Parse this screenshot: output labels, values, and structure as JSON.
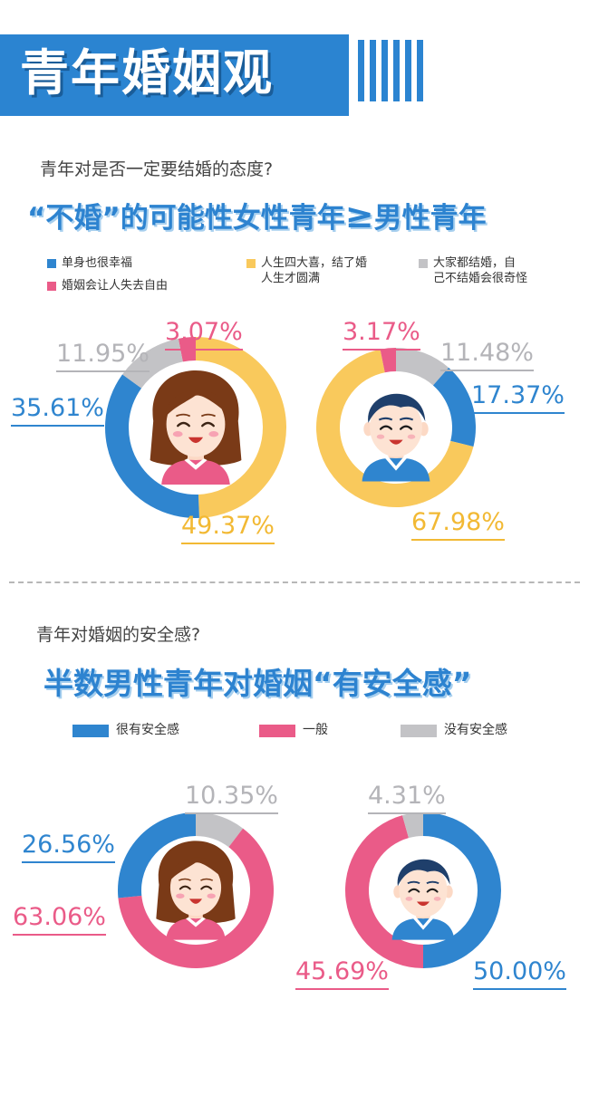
{
  "header": {
    "title": "青年婚姻观"
  },
  "section1": {
    "question": "青年对是否一定要结婚的态度?",
    "headline_left": "“不婚”的可能性女性青年",
    "headline_symbol": "≥",
    "headline_right": "男性青年",
    "legend": [
      {
        "label": "单身也很幸福",
        "color": "#2f85cf"
      },
      {
        "label": "人生四大喜，结了婚人生才圆满",
        "line1": "人生四大喜，结了婚",
        "line2": "人生才圆满",
        "color": "#f9c95c"
      },
      {
        "label": "大家都结婚，自己不结婚会很奇怪",
        "line1": "大家都结婚，自",
        "line2": "己不结婚会很奇怪",
        "color": "#c3c3c6"
      },
      {
        "label": "婚姻会让人失去自由",
        "color": "#ea5b88"
      }
    ]
  },
  "section2": {
    "question": "青年对婚姻的安全感?",
    "headline": "半数男性青年对婚姻“有安全感”",
    "legend": [
      {
        "label": "很有安全感",
        "color": "#2f85cf"
      },
      {
        "label": "一般",
        "color": "#ea5b88"
      },
      {
        "label": "没有安全感",
        "color": "#c3c3c6"
      }
    ]
  },
  "chart_data": [
    {
      "type": "pie",
      "categories": [
        "单身也很幸福",
        "人生四大喜，结了婚人生才圆满",
        "大家都结婚，自己不结婚会很奇怪",
        "婚姻会让人失去自由"
      ],
      "series": [
        {
          "values": [
            35.61,
            49.37,
            11.95,
            3.07
          ],
          "labels": [
            "35.61%",
            "49.37%",
            "11.95%",
            "3.07%"
          ]
        },
        {
          "values": [
            17.37,
            67.98,
            11.48,
            3.17
          ],
          "labels": [
            "17.37%",
            "67.98%",
            "11.48%",
            "3.17%"
          ]
        }
      ]
    },
    {
      "type": "pie",
      "categories": [
        "很有安全感",
        "一般",
        "没有安全感"
      ],
      "series": [
        {
          "values": [
            26.56,
            63.06,
            10.35
          ],
          "labels": [
            "26.56%",
            "63.06%",
            "10.35%"
          ]
        },
        {
          "values": [
            50.0,
            45.69,
            4.31
          ],
          "labels": [
            "50.00%",
            "45.69%",
            "4.31%"
          ]
        }
      ]
    }
  ],
  "colors": {
    "blue": "#2f85cf",
    "yellow": "#f9c95c",
    "gray": "#c3c3c6",
    "pink": "#ea5b88"
  },
  "avatars": [
    "female-avatar",
    "male-avatar"
  ]
}
